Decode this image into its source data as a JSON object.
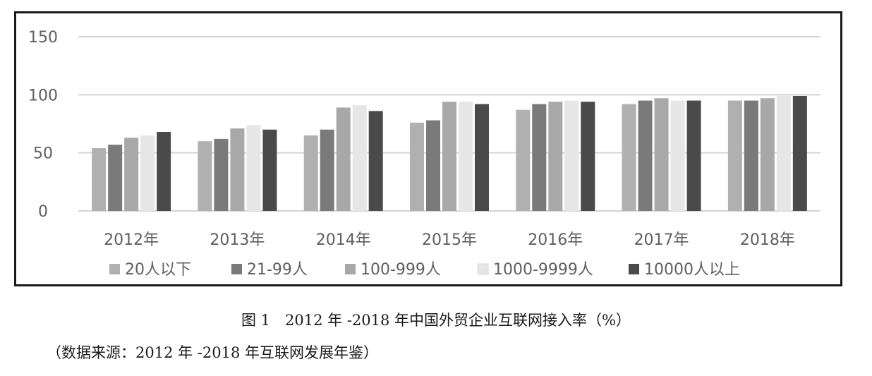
{
  "chart_data": {
    "type": "bar",
    "categories": [
      "2012年",
      "2013年",
      "2014年",
      "2015年",
      "2016年",
      "2017年",
      "2018年"
    ],
    "series": [
      {
        "name": "20人以下",
        "color": "#b0b0b0",
        "values": [
          54,
          60,
          65,
          76,
          87,
          92,
          95
        ]
      },
      {
        "name": "21-99人",
        "color": "#7a7a7a",
        "values": [
          57,
          62,
          70,
          78,
          92,
          95,
          95
        ]
      },
      {
        "name": "100-999人",
        "color": "#a8a8a8",
        "values": [
          63,
          71,
          89,
          94,
          94,
          97,
          97
        ]
      },
      {
        "name": "1000-9999人",
        "color": "#e6e6e6",
        "values": [
          65,
          74,
          91,
          94,
          95,
          95,
          99
        ]
      },
      {
        "name": "10000人以上",
        "color": "#4a4a4a",
        "values": [
          68,
          70,
          86,
          92,
          94,
          95,
          99
        ]
      }
    ],
    "yticks": [
      0,
      50,
      100,
      150
    ],
    "ylim": [
      0,
      150
    ],
    "grid": true,
    "legend": "bottom"
  },
  "caption": "图 1　2012 年 -2018 年中国外贸企业互联网接入率（%）",
  "source": "（数据来源：2012 年 -2018 年互联网发展年鉴）"
}
